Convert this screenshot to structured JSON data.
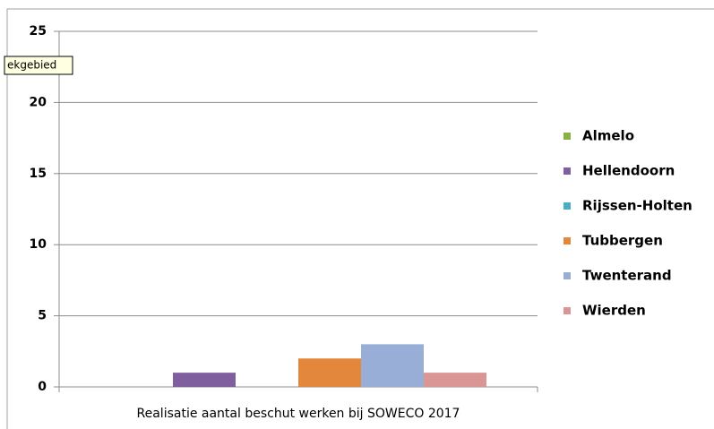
{
  "tooltip": "ekgebied",
  "chart_data": {
    "type": "bar",
    "categories": [
      "Realisatie aantal beschut werken bij SOWECO 2017"
    ],
    "series": [
      {
        "name": "Almelo",
        "color": "#8db043",
        "values": [
          0
        ]
      },
      {
        "name": "Hellendoorn",
        "color": "#7f5f9e",
        "values": [
          1
        ]
      },
      {
        "name": "Rijssen-Holten",
        "color": "#4bacc6",
        "values": [
          0
        ]
      },
      {
        "name": "Tubbergen",
        "color": "#e2873c",
        "values": [
          2
        ]
      },
      {
        "name": "Twenterand",
        "color": "#99aed6",
        "values": [
          3
        ]
      },
      {
        "name": "Wierden",
        "color": "#d99694",
        "values": [
          1
        ]
      }
    ],
    "ylim": [
      0,
      25
    ],
    "yticks": [
      0,
      5,
      10,
      15,
      20,
      25
    ],
    "grid": true,
    "legend": "right"
  }
}
